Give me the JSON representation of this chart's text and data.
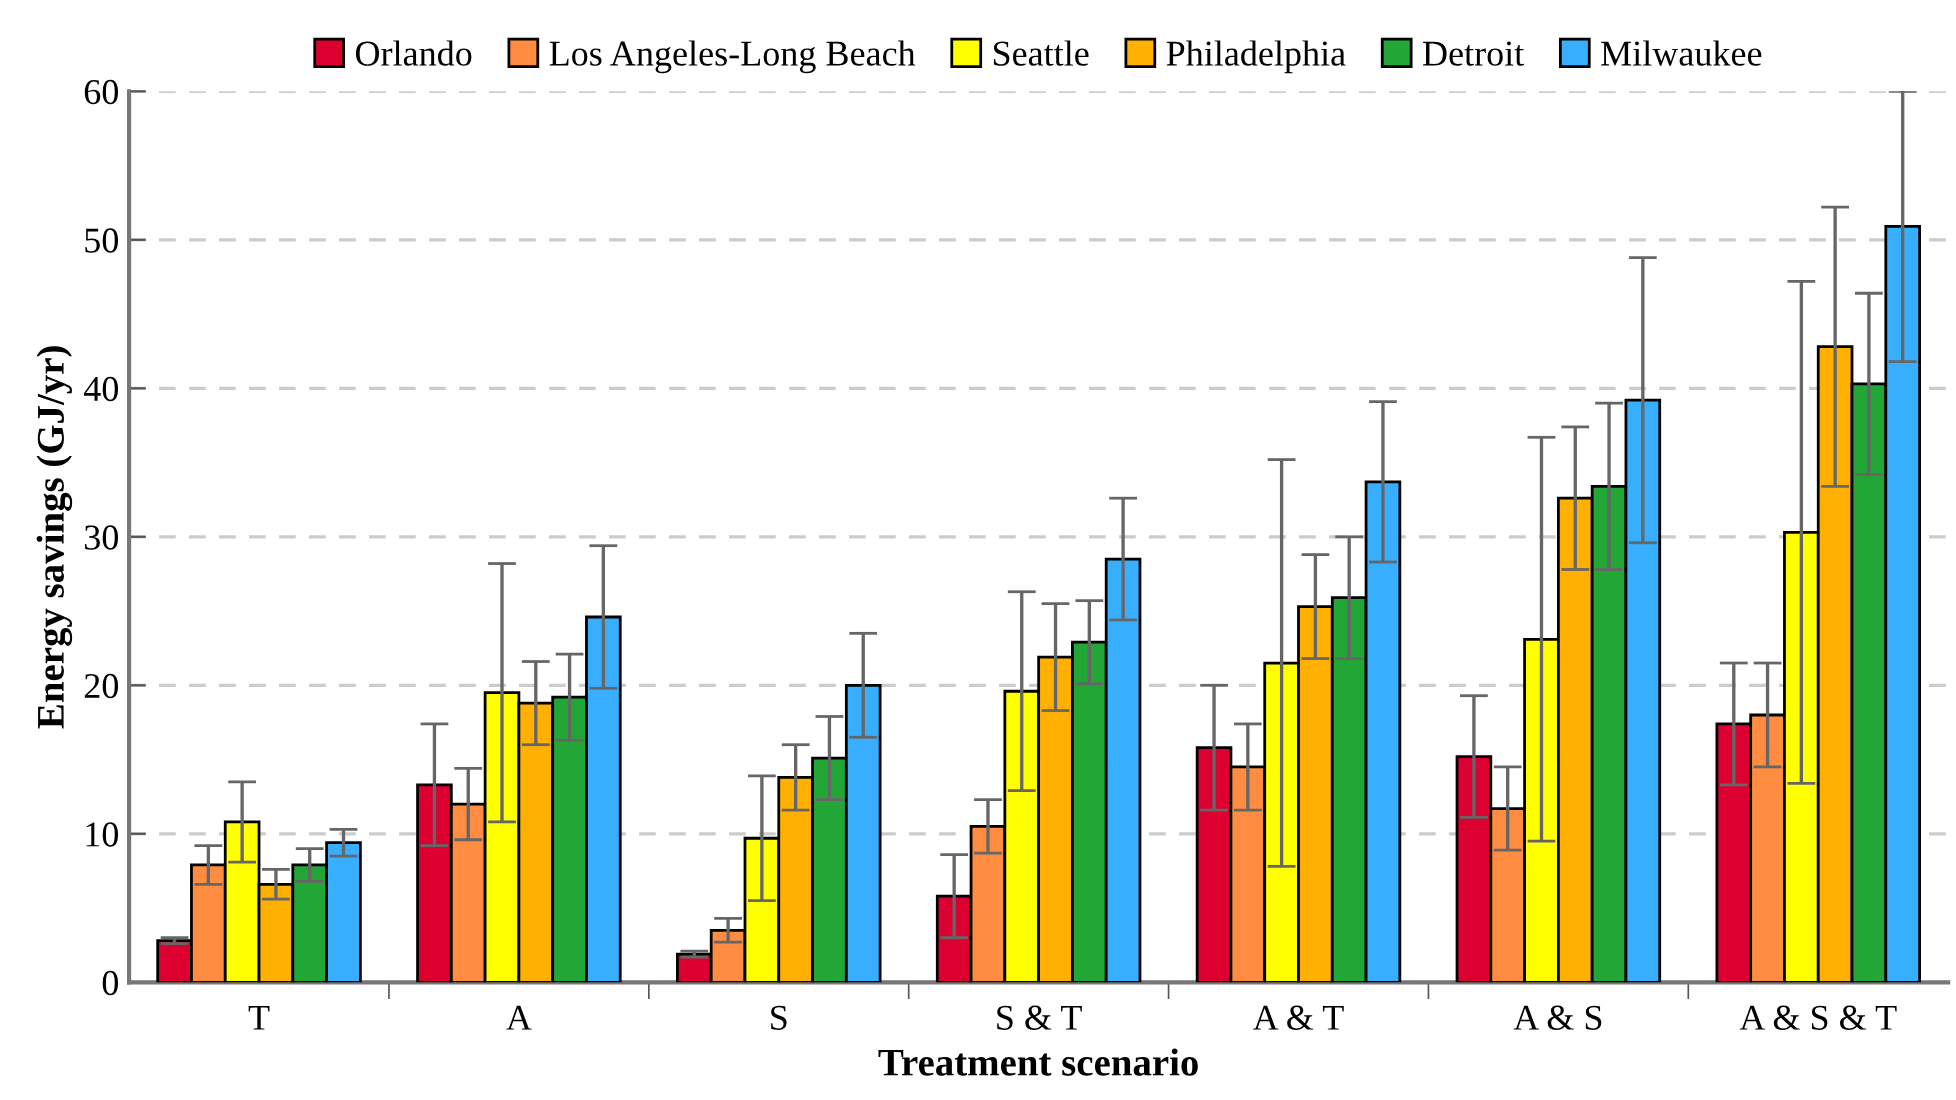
{
  "chart_data": {
    "type": "bar",
    "xlabel": "Treatment scenario",
    "ylabel": "Energy savings (GJ/yr)",
    "categories": [
      "T",
      "A",
      "S",
      "S & T",
      "A & T",
      "A & S",
      "A & S & T"
    ],
    "series": [
      {
        "name": "Orlando",
        "color": "#dc0031",
        "values": [
          2.8,
          13.3,
          1.9,
          5.8,
          15.8,
          15.2,
          17.4
        ],
        "errors": [
          0.2,
          4.1,
          0.2,
          2.8,
          4.2,
          4.1,
          4.1
        ]
      },
      {
        "name": "Los Angeles-Long Beach",
        "color": "#ff8c40",
        "values": [
          7.9,
          12.0,
          3.5,
          10.5,
          14.5,
          11.7,
          18.0
        ],
        "errors": [
          1.3,
          2.4,
          0.8,
          1.8,
          2.9,
          2.8,
          3.5
        ]
      },
      {
        "name": "Seattle",
        "color": "#ffff00",
        "values": [
          10.8,
          19.5,
          9.7,
          19.6,
          21.5,
          23.1,
          30.3
        ],
        "errors": [
          2.7,
          8.7,
          4.2,
          6.7,
          13.7,
          13.6,
          16.9
        ]
      },
      {
        "name": "Philadelphia",
        "color": "#ffb000",
        "values": [
          6.6,
          18.8,
          13.8,
          21.9,
          25.3,
          32.6,
          42.8
        ],
        "errors": [
          1.0,
          2.8,
          2.2,
          3.6,
          3.5,
          4.8,
          9.4
        ]
      },
      {
        "name": "Detroit",
        "color": "#22a636",
        "values": [
          7.9,
          19.2,
          15.1,
          22.9,
          25.9,
          33.4,
          40.3
        ],
        "errors": [
          1.1,
          2.9,
          2.8,
          2.8,
          4.1,
          5.6,
          6.1
        ]
      },
      {
        "name": "Milwaukee",
        "color": "#38aeff",
        "values": [
          9.4,
          24.6,
          20.0,
          28.5,
          33.7,
          39.2,
          50.9
        ],
        "errors": [
          0.9,
          4.8,
          3.5,
          4.1,
          5.4,
          9.6,
          9.1
        ]
      }
    ],
    "ylim": [
      0,
      60
    ],
    "yticks": [
      0,
      10,
      20,
      30,
      40,
      50,
      60
    ],
    "grid": "y",
    "legend": "top"
  }
}
